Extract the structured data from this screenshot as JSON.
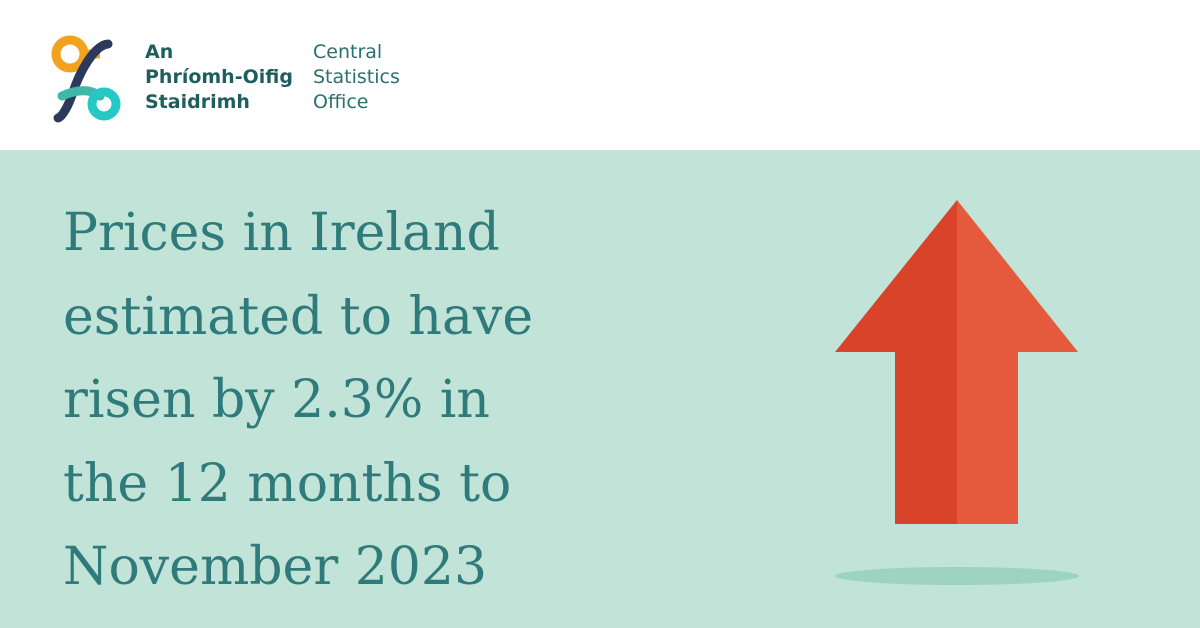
{
  "logo": {
    "irish_lines": [
      "An",
      "Phríomh-Oifig",
      "Staidrimh"
    ],
    "english_lines": [
      "Central",
      "Statistics",
      "Office"
    ]
  },
  "headline": {
    "lines": [
      "Prices in Ireland",
      "estimated to have",
      "risen by 2.3% in",
      "the 12 months to",
      "November 2023"
    ]
  }
}
